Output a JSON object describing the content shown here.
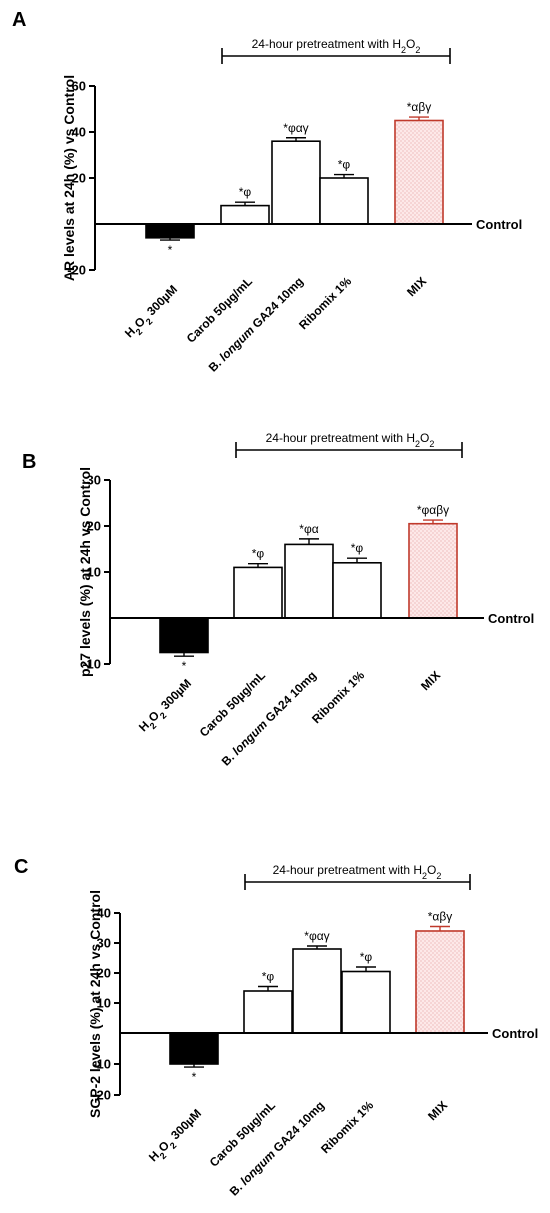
{
  "figure": {
    "control_label": "Control",
    "pretreatment_label": "24-hour pretreatment with H",
    "pretreatment_sub": "2",
    "pretreatment_o": "O",
    "pretreatment_sub2": "2",
    "colors": {
      "bar_fill": "#ffffff",
      "bar_stroke": "#000000",
      "black_bar": "#000000",
      "mix_stroke": "#c0392b",
      "mix_fill": "#fde8e8",
      "mix_dot": "#e5a5a5"
    }
  },
  "chart_data": [
    {
      "panel": "A",
      "type": "bar",
      "ylabel": "AR levels at 24h (%) vs Control",
      "ylim": [
        -20,
        60
      ],
      "yticks": [
        -20,
        20,
        40,
        60
      ],
      "categories": [
        "H2O2 300µM",
        "Carob 50µg/mL",
        "B. longum GA24 10mg",
        "Ribomix 1%",
        "MIX"
      ],
      "values": [
        -6,
        8,
        36,
        20,
        45
      ],
      "errors": [
        1,
        1.5,
        1.5,
        1.5,
        1.5
      ],
      "annotations": [
        "*",
        "*φ",
        "*φαγ",
        "*φ",
        "*αβγ"
      ]
    },
    {
      "panel": "B",
      "type": "bar",
      "ylabel": "p27 levels (%) at 24h vs Control",
      "ylim": [
        -10,
        30
      ],
      "yticks": [
        -10,
        10,
        20,
        30
      ],
      "categories": [
        "H2O2 300µM",
        "Carob 50µg/mL",
        "B. longum GA24 10mg",
        "Ribomix 1%",
        "MIX"
      ],
      "values": [
        -7.5,
        11,
        16,
        12,
        20.5
      ],
      "errors": [
        0.8,
        0.8,
        1.2,
        1.0,
        0.8
      ],
      "annotations": [
        "*",
        "*φ",
        "*φα",
        "*φ",
        "*φαβγ"
      ]
    },
    {
      "panel": "C",
      "type": "bar",
      "ylabel": "SGP-2 levels (%) at 24h vs Control",
      "ylim": [
        -20,
        40
      ],
      "yticks": [
        -20,
        -10,
        10,
        20,
        30,
        40
      ],
      "categories": [
        "H2O2 300µM",
        "Carob 50µg/mL",
        "B. longum GA24 10mg",
        "Ribomix 1%",
        "MIX"
      ],
      "values": [
        -10,
        14,
        28,
        20.5,
        34
      ],
      "errors": [
        1,
        1.5,
        1,
        1.5,
        1.5
      ],
      "annotations": [
        "*",
        "*φ",
        "*φαγ",
        "*φ",
        "*αβγ"
      ]
    }
  ]
}
